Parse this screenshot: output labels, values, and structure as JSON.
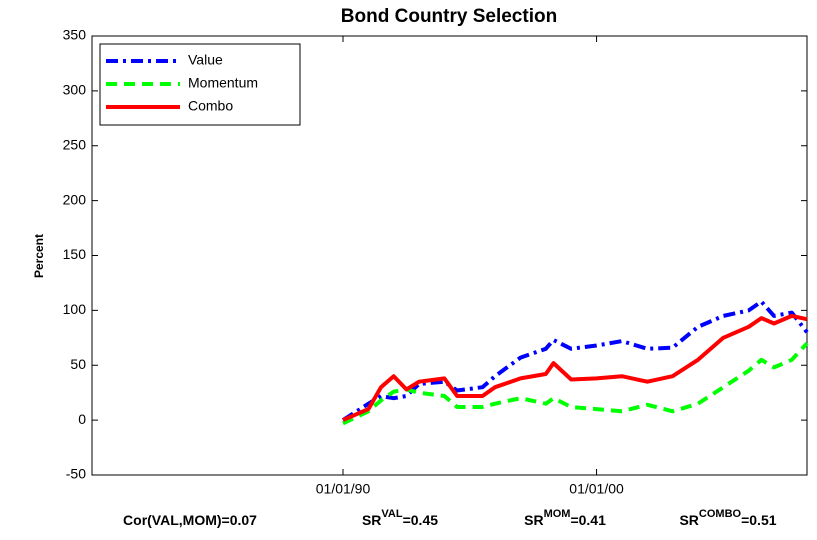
{
  "chart_data": {
    "type": "line",
    "title": "Bond Country Selection",
    "y_label": "Percent",
    "x": [
      1990,
      1991,
      1991.5,
      1992,
      1992.5,
      1993,
      1994,
      1994.5,
      1995.5,
      1996,
      1997,
      1998,
      1998.3,
      1999,
      2000,
      2001,
      2002,
      2003,
      2004,
      2005,
      2006,
      2006.5,
      2007,
      2007.7,
      2008.3
    ],
    "series": [
      {
        "name": "Value",
        "color": "#0000ff",
        "dash": "dash-dot",
        "values": [
          0,
          15,
          22,
          20,
          22,
          33,
          35,
          27,
          30,
          40,
          57,
          65,
          73,
          65,
          68,
          72,
          65,
          66,
          85,
          95,
          100,
          108,
          95,
          98,
          80
        ]
      },
      {
        "name": "Momentum",
        "color": "#00ff00",
        "dash": "dashed",
        "values": [
          -3,
          8,
          18,
          26,
          28,
          25,
          22,
          12,
          12,
          15,
          20,
          15,
          20,
          12,
          10,
          8,
          14,
          8,
          15,
          30,
          45,
          55,
          48,
          55,
          70
        ]
      },
      {
        "name": "Combo",
        "color": "#ff0000",
        "dash": "solid",
        "values": [
          0,
          10,
          30,
          40,
          28,
          35,
          38,
          22,
          22,
          30,
          38,
          42,
          52,
          37,
          38,
          40,
          35,
          40,
          55,
          75,
          85,
          93,
          88,
          95,
          92
        ]
      }
    ],
    "xlim": [
      1980.1,
      2008.3
    ],
    "xticks": [
      {
        "value": 1990,
        "label": "01/01/90"
      },
      {
        "value": 2000,
        "label": "01/01/00"
      }
    ],
    "ylim": [
      -50,
      350
    ],
    "yticks": [
      -50,
      0,
      50,
      100,
      150,
      200,
      250,
      300,
      350
    ],
    "legend": "upper-left",
    "annotations": [
      {
        "base": "Cor(VAL,MOM)=0.07"
      },
      {
        "base": "SR",
        "sup": "VAL",
        "rest": "=0.45"
      },
      {
        "base": "SR",
        "sup": "MOM",
        "rest": "=0.41"
      },
      {
        "base": "SR",
        "sup": "COMBO",
        "rest": "=0.51"
      }
    ]
  }
}
